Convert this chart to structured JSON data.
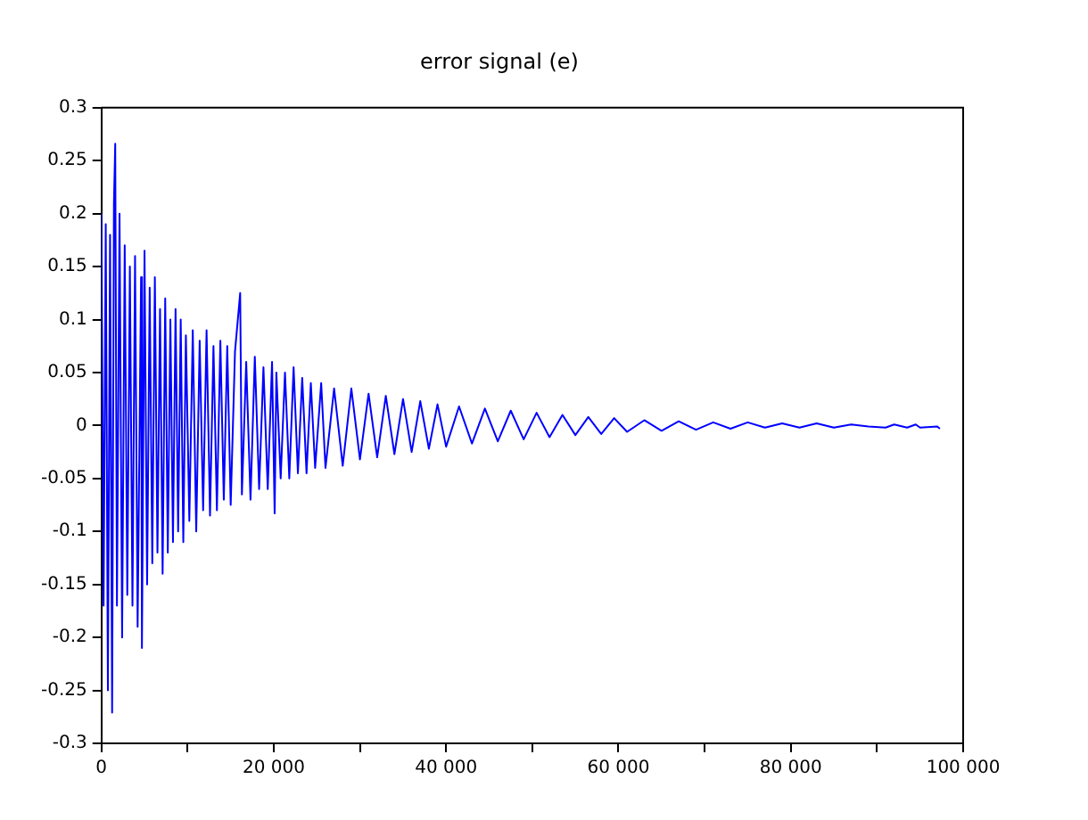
{
  "chart_data": {
    "type": "line",
    "title": "error signal (e)",
    "x": [
      0,
      250,
      500,
      750,
      1000,
      1240,
      1450,
      1600,
      1800,
      2100,
      2400,
      2700,
      3000,
      3300,
      3600,
      3900,
      4200,
      4600,
      4700,
      5000,
      5300,
      5600,
      5900,
      6200,
      6500,
      6800,
      7100,
      7400,
      7700,
      8000,
      8300,
      8600,
      8900,
      9200,
      9500,
      9800,
      10200,
      10600,
      11000,
      11400,
      11800,
      12200,
      12600,
      13000,
      13400,
      13800,
      14200,
      14600,
      15000,
      15500,
      16100,
      16300,
      16800,
      17300,
      17800,
      18300,
      18800,
      19300,
      19800,
      20100,
      20300,
      20800,
      21300,
      21800,
      22300,
      22800,
      23300,
      23800,
      24300,
      24800,
      25500,
      26000,
      27000,
      28000,
      29000,
      30000,
      31000,
      32000,
      33000,
      34000,
      35000,
      36000,
      37000,
      38000,
      39000,
      40000,
      41500,
      43000,
      44500,
      46000,
      47500,
      49000,
      50500,
      52000,
      53500,
      55000,
      56500,
      58000,
      59500,
      61000,
      63000,
      65000,
      67000,
      69000,
      71000,
      73000,
      75000,
      77000,
      79000,
      81000,
      83000,
      85000,
      87000,
      89000,
      91000,
      92000,
      93500,
      94500,
      95000,
      97000,
      97300
    ],
    "series": [
      {
        "color": "#0000ff",
        "values": [
          0.2,
          -0.17,
          0.19,
          -0.25,
          0.18,
          -0.271,
          0.21,
          0.266,
          -0.17,
          0.2,
          -0.2,
          0.17,
          -0.16,
          0.15,
          -0.17,
          0.16,
          -0.19,
          0.14,
          -0.21,
          0.165,
          -0.15,
          0.13,
          -0.13,
          0.14,
          -0.12,
          0.11,
          -0.14,
          0.12,
          -0.12,
          0.1,
          -0.11,
          0.11,
          -0.1,
          0.1,
          -0.11,
          0.085,
          -0.09,
          0.09,
          -0.1,
          0.08,
          -0.08,
          0.09,
          -0.085,
          0.075,
          -0.08,
          0.08,
          -0.07,
          0.075,
          -0.075,
          0.07,
          0.125,
          -0.065,
          0.06,
          -0.07,
          0.065,
          -0.06,
          0.055,
          -0.06,
          0.06,
          -0.083,
          0.05,
          -0.05,
          0.05,
          -0.05,
          0.055,
          -0.045,
          0.045,
          -0.045,
          0.04,
          -0.04,
          0.04,
          -0.04,
          0.035,
          -0.038,
          0.035,
          -0.032,
          0.03,
          -0.03,
          0.028,
          -0.027,
          0.025,
          -0.025,
          0.023,
          -0.022,
          0.02,
          -0.02,
          0.018,
          -0.017,
          0.016,
          -0.015,
          0.014,
          -0.013,
          0.012,
          -0.011,
          0.01,
          -0.009,
          0.008,
          -0.008,
          0.007,
          -0.006,
          0.005,
          -0.005,
          0.004,
          -0.004,
          0.003,
          -0.003,
          0.003,
          -0.002,
          0.002,
          -0.002,
          0.002,
          -0.002,
          0.001,
          -0.001,
          -0.002,
          0.001,
          -0.002,
          0.001,
          -0.002,
          -0.001,
          -0.003
        ]
      }
    ],
    "xlim": [
      0,
      100000
    ],
    "xticks": [
      0,
      {
        "value": 10000,
        "label": null
      },
      {
        "value": 20000,
        "label": "20 000"
      },
      {
        "value": 30000,
        "label": null
      },
      {
        "value": 40000,
        "label": "40 000"
      },
      {
        "value": 50000,
        "label": null
      },
      {
        "value": 60000,
        "label": "60 000"
      },
      {
        "value": 70000,
        "label": null
      },
      {
        "value": 80000,
        "label": "80 000"
      },
      {
        "value": 90000,
        "label": null
      },
      {
        "value": 100000,
        "label": "100 000"
      }
    ],
    "ylim": [
      -0.3,
      0.3
    ],
    "yticks": [
      -0.3,
      -0.25,
      -0.2,
      -0.15,
      -0.1,
      -0.05,
      0,
      0.05,
      0.1,
      0.15,
      0.2,
      0.25,
      0.3
    ],
    "grid": false,
    "legend": false,
    "marker": "none",
    "line_style": "solid"
  }
}
